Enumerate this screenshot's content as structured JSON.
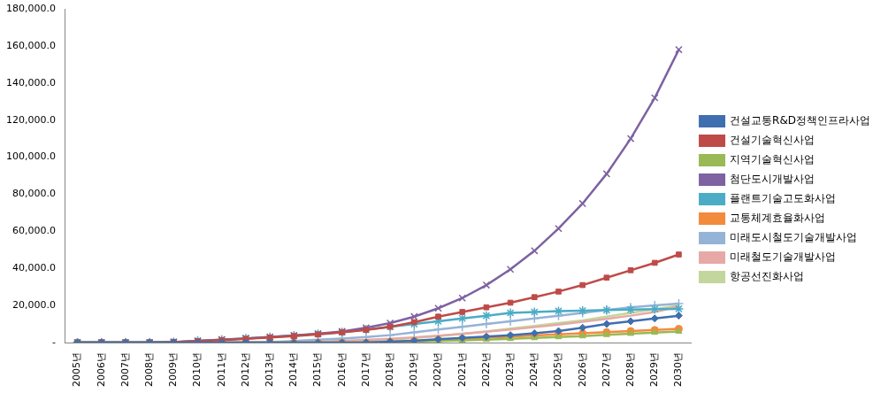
{
  "chart_data": {
    "type": "line",
    "categories": [
      "2005년",
      "2006년",
      "2007년",
      "2008년",
      "2009년",
      "2010년",
      "2011년",
      "2012년",
      "2013년",
      "2014년",
      "2015년",
      "2016년",
      "2017년",
      "2018년",
      "2019년",
      "2020년",
      "2021년",
      "2022년",
      "2023년",
      "2024년",
      "2025년",
      "2026년",
      "2027년",
      "2028년",
      "2029년",
      "2030년"
    ],
    "series": [
      {
        "name": "건설교통R&D정책인프라사업",
        "color": "#3f6fae",
        "marker": "diamond",
        "values": [
          0,
          0,
          0,
          0,
          0,
          0,
          0,
          0,
          0,
          0,
          0,
          0,
          0,
          500,
          1000,
          1800,
          2500,
          3200,
          4000,
          5000,
          6200,
          8000,
          10000,
          11500,
          13000,
          14500
        ]
      },
      {
        "name": "건설기술혁신사업",
        "color": "#be4b48",
        "marker": "square",
        "values": [
          0,
          0,
          0,
          0,
          300,
          800,
          1300,
          2000,
          2700,
          3500,
          4400,
          5500,
          6800,
          8500,
          11000,
          14000,
          16500,
          19000,
          21500,
          24500,
          27500,
          31000,
          35000,
          39000,
          43000,
          47500
        ]
      },
      {
        "name": "지역기술혁신사업",
        "color": "#98b954",
        "marker": "triangle",
        "values": [
          0,
          0,
          0,
          0,
          0,
          0,
          0,
          0,
          0,
          0,
          0,
          0,
          0,
          300,
          500,
          800,
          1200,
          1600,
          2000,
          2500,
          3000,
          3500,
          4200,
          4800,
          5400,
          6000
        ]
      },
      {
        "name": "첨단도시개발사업",
        "color": "#7e62a1",
        "marker": "x",
        "values": [
          0,
          0,
          0,
          0,
          300,
          800,
          1500,
          2200,
          3000,
          3800,
          4800,
          6000,
          8000,
          10500,
          14000,
          18500,
          24000,
          31000,
          39500,
          49500,
          61500,
          75000,
          91000,
          110000,
          132000,
          158000
        ]
      },
      {
        "name": "플랜트기술고도화사업",
        "color": "#4bacc6",
        "marker": "star",
        "values": [
          0,
          0,
          0,
          0,
          300,
          1000,
          1600,
          2300,
          3000,
          3800,
          4700,
          5600,
          7000,
          8500,
          10000,
          11500,
          13000,
          14500,
          16000,
          16500,
          17000,
          17200,
          17500,
          17800,
          18000,
          18200
        ]
      },
      {
        "name": "교통체계효율화사업",
        "color": "#f38b3c",
        "marker": "circle",
        "values": [
          0,
          0,
          0,
          0,
          0,
          0,
          0,
          0,
          0,
          0,
          0,
          0,
          0,
          500,
          900,
          1400,
          2000,
          2600,
          3200,
          3800,
          4400,
          5000,
          5600,
          6200,
          6800,
          7400
        ]
      },
      {
        "name": "미래도시철도기술개발사업",
        "color": "#95b3d7",
        "marker": "plus",
        "values": [
          0,
          0,
          0,
          0,
          0,
          0,
          0,
          0,
          300,
          800,
          1500,
          2200,
          3000,
          4000,
          5500,
          7000,
          8500,
          10000,
          11500,
          13000,
          14500,
          16000,
          17500,
          19000,
          20000,
          21000
        ]
      },
      {
        "name": "미래철도기술개발사업",
        "color": "#e6a9a6",
        "marker": "none",
        "values": [
          0,
          0,
          0,
          0,
          0,
          0,
          0,
          0,
          0,
          200,
          500,
          900,
          1400,
          2000,
          2800,
          3700,
          4700,
          5800,
          7000,
          8300,
          9700,
          11200,
          12800,
          14500,
          16500,
          19500
        ]
      },
      {
        "name": "항공선진화사업",
        "color": "#c3d69b",
        "marker": "none",
        "values": [
          0,
          0,
          0,
          0,
          0,
          0,
          0,
          0,
          0,
          0,
          0,
          0,
          500,
          1500,
          2500,
          3500,
          4800,
          6000,
          7500,
          9000,
          10500,
          12000,
          14000,
          16000,
          18000,
          20000
        ]
      }
    ],
    "ylim": [
      0,
      180000
    ],
    "yticks": [
      {
        "value": 0,
        "label": "-"
      },
      {
        "value": 20000,
        "label": "20,000.0"
      },
      {
        "value": 40000,
        "label": "40,000.0"
      },
      {
        "value": 60000,
        "label": "60,000.0"
      },
      {
        "value": 80000,
        "label": "80,000.0"
      },
      {
        "value": 100000,
        "label": "100,000.0"
      },
      {
        "value": 120000,
        "label": "120,000.0"
      },
      {
        "value": 140000,
        "label": "140,000.0"
      },
      {
        "value": 160000,
        "label": "160,000.0"
      },
      {
        "value": 180000,
        "label": "180,000.0"
      }
    ],
    "grid": false,
    "legend": "right"
  }
}
